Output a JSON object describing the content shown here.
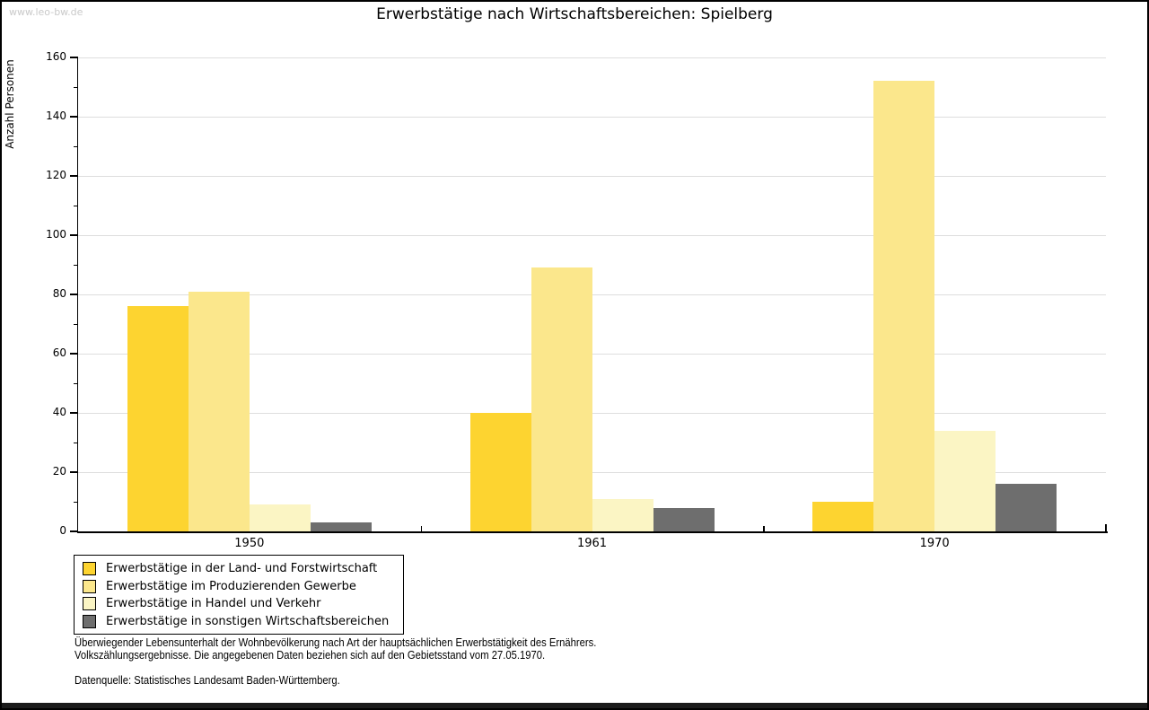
{
  "site": {
    "watermark": "www.leo-bw.de"
  },
  "chart_data": {
    "type": "bar",
    "title": "Erwerbstätige nach Wirtschaftsbereichen: Spielberg",
    "xlabel": "",
    "ylabel": "Anzahl Personen",
    "categories": [
      "1950",
      "1961",
      "1970"
    ],
    "series": [
      {
        "name": "Erwerbstätige in der Land- und Forstwirtschaft",
        "color": "#FDD430",
        "values": [
          76,
          40,
          10
        ]
      },
      {
        "name": "Erwerbstätige im Produzierenden Gewerbe",
        "color": "#FBE78C",
        "values": [
          81,
          89,
          152
        ]
      },
      {
        "name": "Erwerbstätige in Handel und Verkehr",
        "color": "#FBF5C4",
        "values": [
          9,
          11,
          34
        ]
      },
      {
        "name": "Erwerbstätige in sonstigen Wirtschaftsbereichen",
        "color": "#6E6E6E",
        "values": [
          3,
          8,
          16
        ]
      }
    ],
    "ylim": [
      0,
      160
    ],
    "ytick_major_step": 20,
    "ytick_minor_step": 10,
    "grid": true,
    "gridline_color": "#dedede",
    "legend_position": "bottom-left"
  },
  "footer": {
    "line1": "Überwiegender Lebensunterhalt der Wohnbevölkerung nach Art der hauptsächlichen Erwerbstätigkeit des Ernährers.",
    "line2": "Volkszählungsergebnisse. Die angegebenen Daten beziehen sich auf den Gebietsstand vom 27.05.1970.",
    "source": "Datenquelle: Statistisches Landesamt Baden-Württemberg."
  }
}
